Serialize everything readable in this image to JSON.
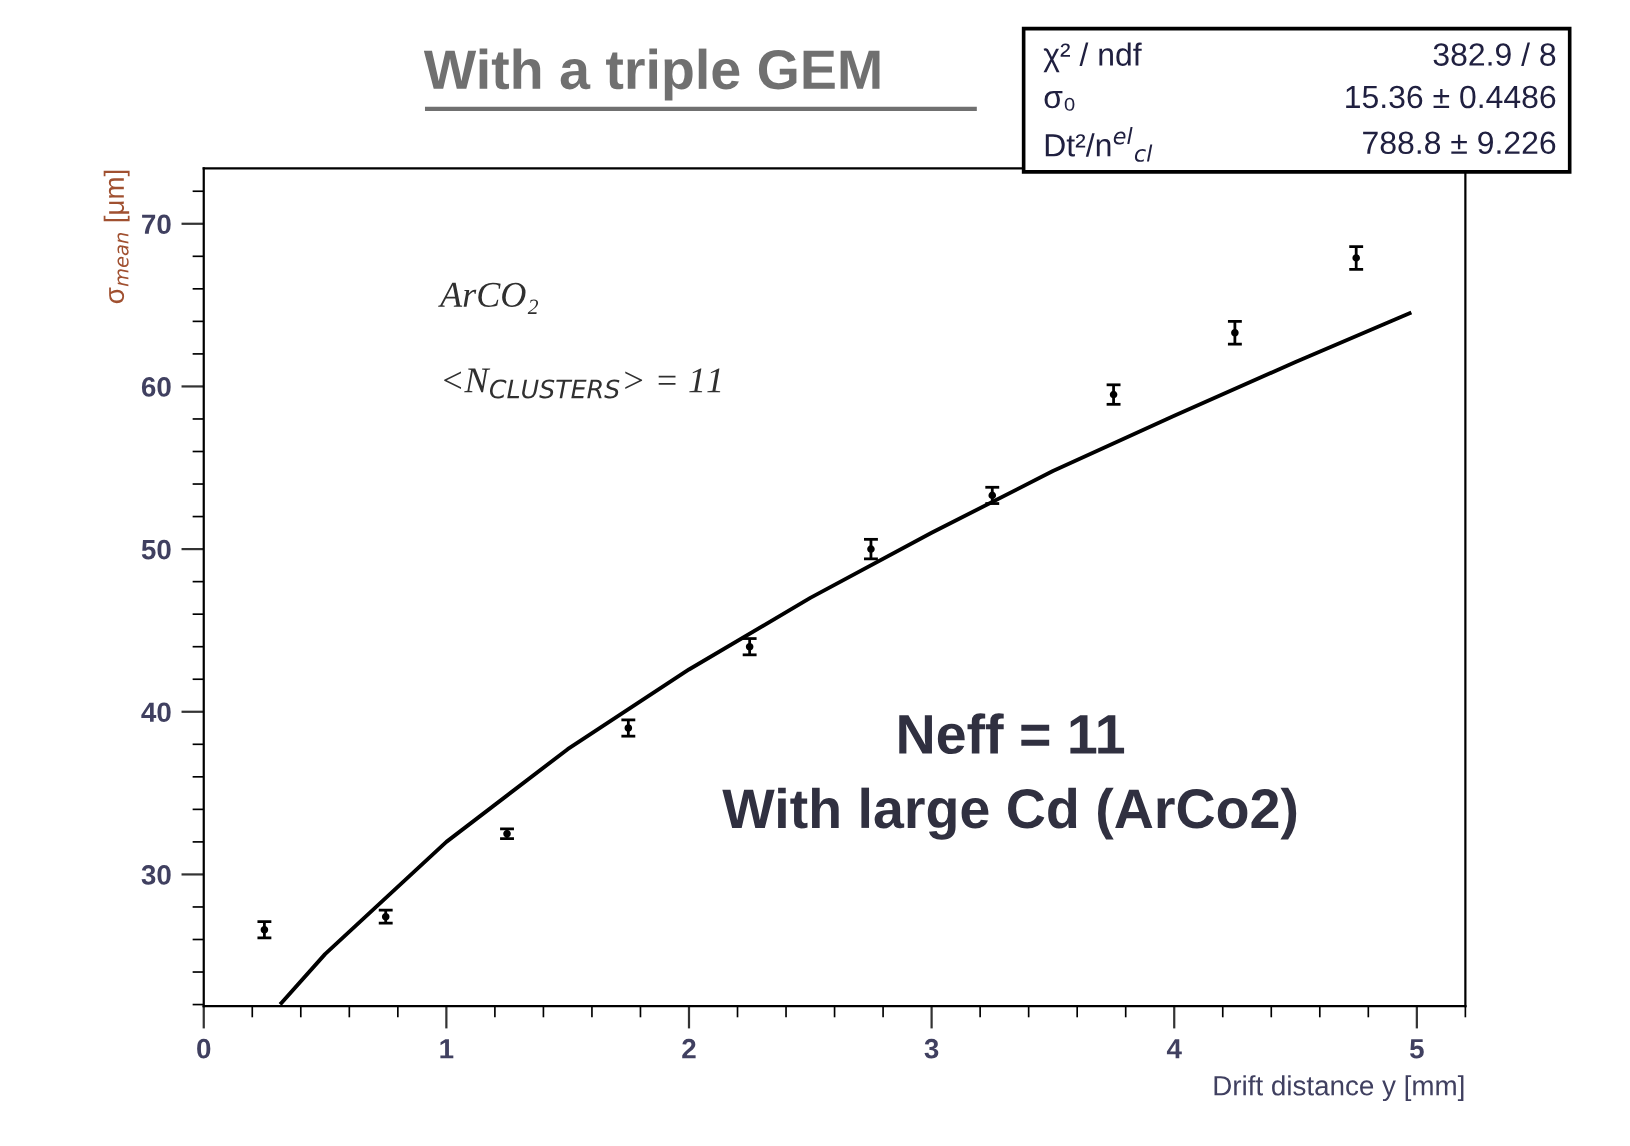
{
  "chart_data": {
    "type": "scatter",
    "title": "With a triple GEM",
    "xlabel": "Drift distance y [mm]",
    "ylabel": "σ$_{mean}$ [μm]",
    "xlim": [
      0,
      5.2
    ],
    "xticks": [
      0,
      1,
      2,
      3,
      4,
      5
    ],
    "ylim": [
      21.9,
      73.4
    ],
    "yticks": [
      30,
      40,
      50,
      60,
      70
    ],
    "grid": false,
    "legend": false,
    "series": [
      {
        "color": "#000000",
        "marker": "circle",
        "x": [
          0.25,
          0.75,
          1.25,
          1.75,
          2.25,
          2.75,
          3.25,
          3.75,
          4.25,
          4.75
        ],
        "values": [
          26.6,
          27.4,
          32.5,
          39.0,
          44.0,
          50.0,
          53.3,
          59.5,
          63.3,
          67.9
        ],
        "errors": [
          0.5,
          0.4,
          0.3,
          0.5,
          0.5,
          0.6,
          0.5,
          0.6,
          0.7,
          0.7
        ]
      },
      {
        "type": "line",
        "color": "#000000",
        "marker": "none",
        "line_style": "solid",
        "x": [
          0.32,
          0.5,
          1,
          1.5,
          2,
          2.5,
          3,
          3.5,
          4,
          4.5,
          4.97
        ],
        "values": [
          22.1,
          25.1,
          32.0,
          37.7,
          42.6,
          47.0,
          51.0,
          54.8,
          58.2,
          61.5,
          64.5
        ]
      }
    ],
    "annotations": [
      "ArCO₂",
      "<N$_{CLUSTERS}$> = 11",
      "Neff = 11",
      "With large Cd (ArCo2)",
      "χ² / ndf",
      "382.9 / 8",
      "σ₀",
      "15.36 ± 0.4486",
      "Dt²/n$^{el}$$_{cl}$",
      "788.8 ± 9.226"
    ]
  }
}
